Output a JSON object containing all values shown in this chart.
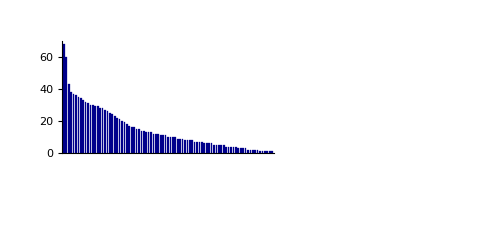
{
  "n_bars": 87,
  "bar_color": "#00008B",
  "bar_edge_color": "#00008B",
  "ylim": [
    0,
    70
  ],
  "yticks": [
    0,
    20,
    40,
    60
  ],
  "ylabel": "",
  "xlabel": "",
  "title": "",
  "background_color": "#ffffff",
  "bar_width": 0.7,
  "values": [
    68,
    60,
    43,
    38,
    37,
    36,
    35,
    34,
    33,
    32,
    31,
    30,
    30,
    29,
    29,
    28,
    28,
    27,
    26,
    25,
    24,
    23,
    22,
    21,
    20,
    19,
    18,
    17,
    16,
    16,
    15,
    15,
    14,
    14,
    13,
    13,
    13,
    12,
    12,
    12,
    11,
    11,
    11,
    10,
    10,
    10,
    10,
    9,
    9,
    9,
    8,
    8,
    8,
    8,
    7,
    7,
    7,
    7,
    6,
    6,
    6,
    6,
    5,
    5,
    5,
    5,
    5,
    4,
    4,
    4,
    4,
    4,
    3,
    3,
    3,
    3,
    2,
    2,
    2,
    2,
    2,
    1,
    1,
    1,
    1,
    1,
    1
  ]
}
